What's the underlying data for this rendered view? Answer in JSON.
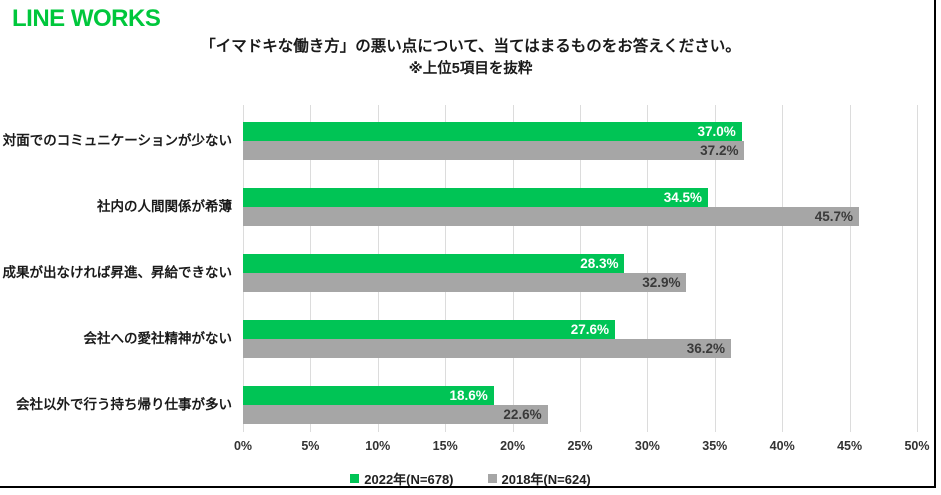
{
  "logo": "LINE WORKS",
  "header": {
    "title": "「イマドキな働き方」の悪い点について、当てはまるものをお答えください。",
    "subtitle": "※上位5項目を抜粋"
  },
  "colors": {
    "brand_green": "#00C73C",
    "bar_green": "#00C455",
    "bar_gray": "#A6A6A6",
    "gridline": "#dcdcdc"
  },
  "chart_data": {
    "type": "bar",
    "orientation": "horizontal",
    "title": "「イマドキな働き方」の悪い点について、当てはまるものをお答えください。",
    "subtitle": "※上位5項目を抜粋",
    "categories": [
      "対面でのコミュニケーションが少ない",
      "社内の人間関係が希薄",
      "成果が出なければ昇進、昇給できない",
      "会社への愛社精神がない",
      "会社以外で行う持ち帰り仕事が多い"
    ],
    "series": [
      {
        "name": "2022年(N=678)",
        "color": "#00C455",
        "values": [
          37.0,
          34.5,
          28.3,
          27.6,
          18.6
        ],
        "labels": [
          "37.0%",
          "34.5%",
          "28.3%",
          "27.6%",
          "18.6%"
        ]
      },
      {
        "name": "2018年(N=624)",
        "color": "#A6A6A6",
        "values": [
          37.2,
          45.7,
          32.9,
          36.2,
          22.6
        ],
        "labels": [
          "37.2%",
          "45.7%",
          "32.9%",
          "36.2%",
          "22.6%"
        ]
      }
    ],
    "xlim": [
      0,
      50
    ],
    "x_ticks": [
      "0%",
      "5%",
      "10%",
      "15%",
      "20%",
      "25%",
      "30%",
      "35%",
      "40%",
      "45%",
      "50%"
    ],
    "grid": true,
    "legend_position": "bottom"
  }
}
